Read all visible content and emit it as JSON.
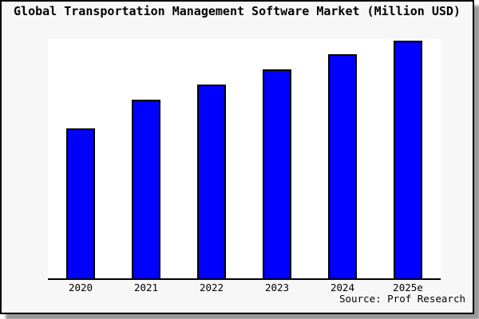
{
  "window": {
    "background": "#ffffff"
  },
  "frame": {
    "background": "#f7f7f7",
    "border_color": "#000000",
    "shadow_color": "#999999"
  },
  "source_note": "Source: Prof Research",
  "chart_data": {
    "type": "bar",
    "title": "Global Transportation Management Software Market (Million USD)",
    "categories": [
      "2020",
      "2021",
      "2022",
      "2023",
      "2024",
      "2025e"
    ],
    "values": [
      63.2,
      75.3,
      81.6,
      88.0,
      94.3,
      100.0
    ],
    "values_note": "y-axis has no tick labels or gridlines; values are relative bar heights normalized so the 2025e bar = 100",
    "xlabel": "",
    "ylabel": "",
    "ylim": [
      0,
      100.7
    ],
    "grid": false,
    "legend": false,
    "bar_color": "#0000ff",
    "bar_edge_color": "#000000",
    "plot_background": "#ffffff",
    "annotation": "Source: Prof Research"
  }
}
